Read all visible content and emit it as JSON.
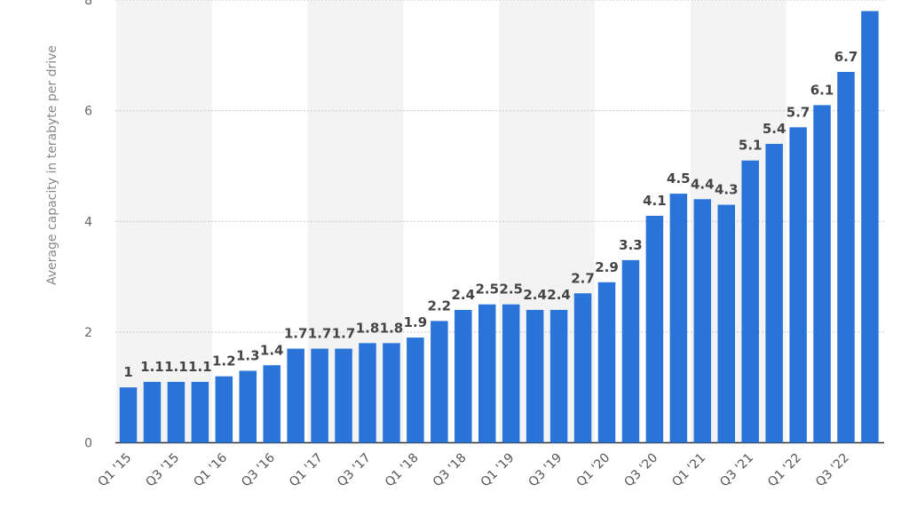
{
  "chart_data": {
    "type": "bar",
    "title": "",
    "xlabel": "",
    "ylabel": "Average capacity in terabyte per drive",
    "ylim": [
      0,
      8
    ],
    "yticks": [
      0,
      2,
      4,
      6,
      8
    ],
    "grid": true,
    "colors": {
      "bar": "#2a73d9",
      "band": "#f3f3f3",
      "grid": "#c8c8c8",
      "baseline": "#333333",
      "data_label": "#444444",
      "tick_label": "#666666"
    },
    "categories": [
      "Q1 '15",
      "Q2 '15",
      "Q3 '15",
      "Q4 '15",
      "Q1 '16",
      "Q2 '16",
      "Q3 '16",
      "Q4 '16",
      "Q1 '17",
      "Q2 '17",
      "Q3 '17",
      "Q4 '17",
      "Q1 '18",
      "Q2 '18",
      "Q3 '18",
      "Q4 '18",
      "Q1 '19",
      "Q2 '19",
      "Q3 '19",
      "Q4 '19",
      "Q1 '20",
      "Q2 '20",
      "Q3 '20",
      "Q4 '20",
      "Q1 '21",
      "Q2 '21",
      "Q3 '21",
      "Q4 '21",
      "Q1 '22",
      "Q2 '22",
      "Q3 '22",
      "Q4 '22"
    ],
    "visible_xtick_labels": [
      "Q1 '15",
      "Q3 '15",
      "Q1 '16",
      "Q3 '16",
      "Q1 '17",
      "Q3 '17",
      "Q1 '18",
      "Q3 '18",
      "Q1 '19",
      "Q3 '19",
      "Q1 '20",
      "Q3 '20",
      "Q1 '21",
      "Q3 '21",
      "Q1 '22",
      "Q3 '22"
    ],
    "values": [
      1,
      1.1,
      1.1,
      1.1,
      1.2,
      1.3,
      1.4,
      1.7,
      1.7,
      1.7,
      1.8,
      1.8,
      1.9,
      2.2,
      2.4,
      2.5,
      2.5,
      2.4,
      2.4,
      2.7,
      2.9,
      3.3,
      4.1,
      4.5,
      4.4,
      4.3,
      5.1,
      5.4,
      5.7,
      6.1,
      6.7,
      7.8
    ],
    "data_labels": [
      "1",
      "1.1",
      "1.1",
      "1.1",
      "1.2",
      "1.3",
      "1.4",
      "1.7",
      "1.7",
      "1.7",
      "1.8",
      "1.8",
      "1.9",
      "2.2",
      "2.4",
      "2.5",
      "2.5",
      "2.4",
      "2.4",
      "2.7",
      "2.9",
      "3.3",
      "4.1",
      "4.5",
      "4.4",
      "4.3",
      "5.1",
      "5.4",
      "5.7",
      "6.1",
      "6.7",
      ""
    ]
  }
}
